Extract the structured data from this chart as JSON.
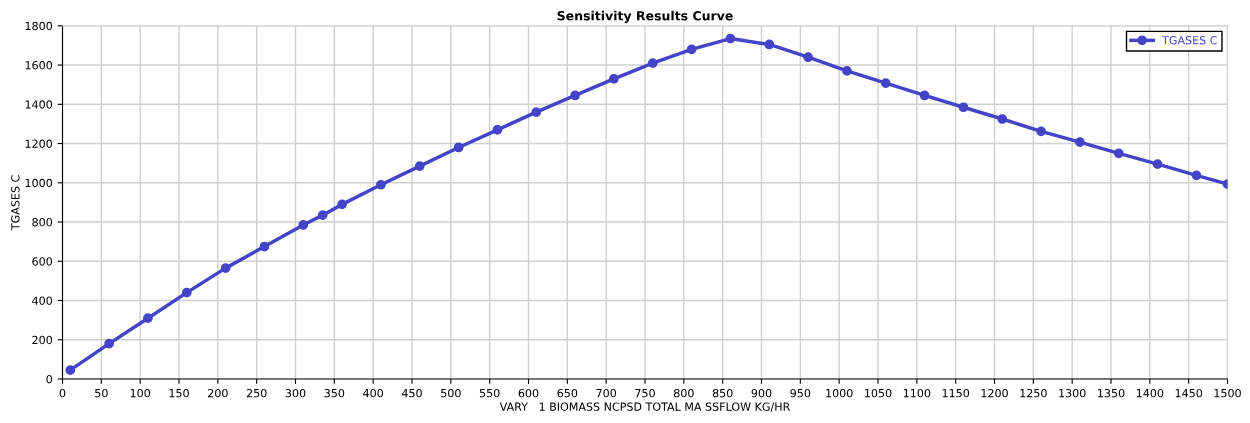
{
  "chart_data": {
    "type": "line",
    "title": "Sensitivity Results Curve",
    "xlabel": "VARY   1 BIOMASS NCPSD TOTAL MA SSFLOW KG/HR",
    "ylabel": "TGASES C",
    "x": [
      10,
      60,
      110,
      160,
      210,
      260,
      310,
      335,
      360,
      410,
      460,
      510,
      560,
      610,
      660,
      710,
      760,
      810,
      860,
      910,
      960,
      1010,
      1060,
      1110,
      1160,
      1210,
      1260,
      1310,
      1360,
      1410,
      1460,
      1500
    ],
    "series": [
      {
        "name": "TGASES C",
        "color": "#4444c8",
        "values": [
          45,
          180,
          310,
          440,
          565,
          675,
          785,
          835,
          890,
          990,
          1085,
          1180,
          1270,
          1360,
          1445,
          1530,
          1610,
          1680,
          1735,
          1705,
          1640,
          1570,
          1508,
          1445,
          1385,
          1325,
          1262,
          1207,
          1150,
          1095,
          1038,
          993
        ]
      }
    ],
    "xlim": [
      0,
      1500
    ],
    "xticks": [
      0,
      50,
      100,
      150,
      200,
      250,
      300,
      350,
      400,
      450,
      500,
      550,
      600,
      650,
      700,
      750,
      800,
      850,
      900,
      950,
      1000,
      1050,
      1100,
      1150,
      1200,
      1250,
      1300,
      1350,
      1400,
      1450,
      1500
    ],
    "ylim": [
      0,
      1800
    ],
    "yticks": [
      0,
      200,
      400,
      600,
      800,
      1000,
      1200,
      1400,
      1600,
      1800
    ],
    "grid": true,
    "legend": "top right",
    "marker": "circle",
    "line_style": "solid"
  }
}
